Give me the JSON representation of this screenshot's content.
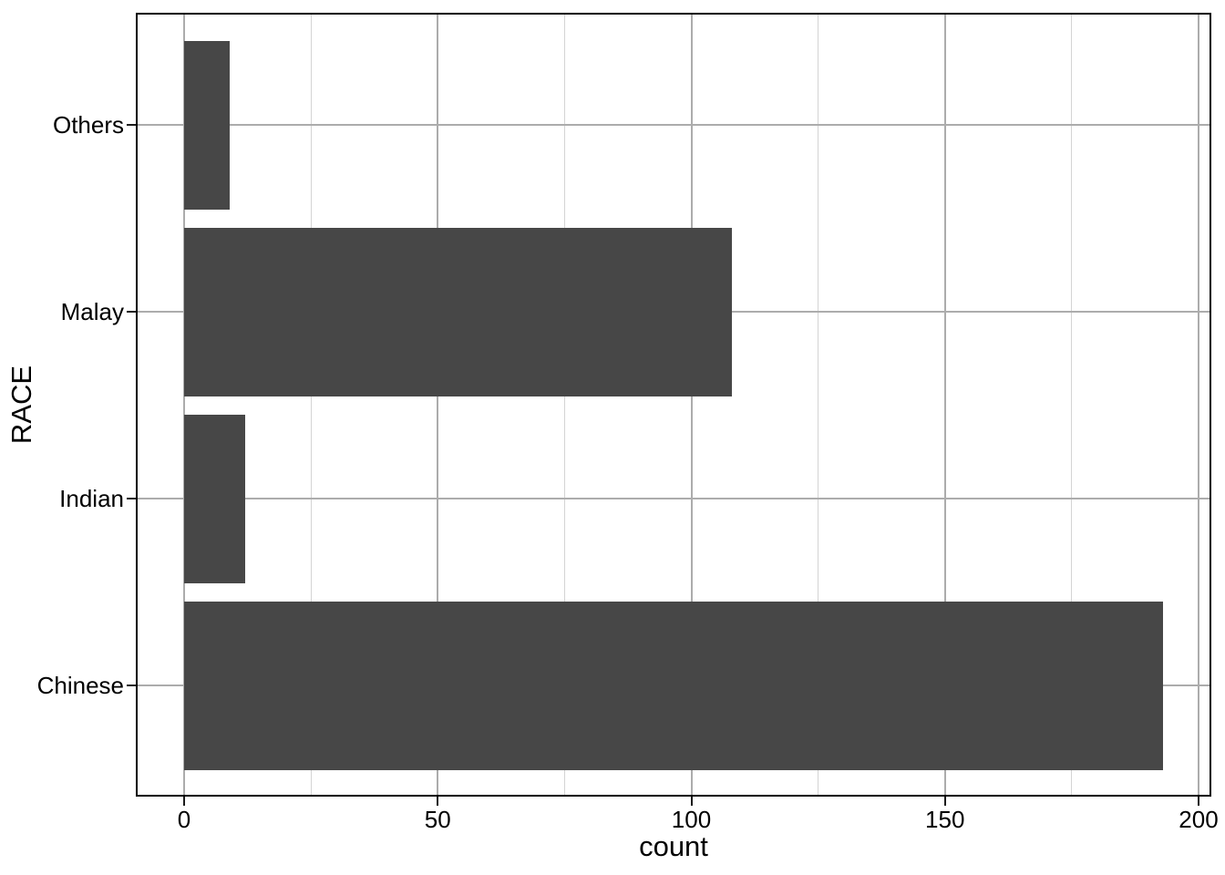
{
  "figure": {
    "background": "#ffffff"
  },
  "chart_data": {
    "type": "bar",
    "orientation": "horizontal",
    "title": "",
    "xlabel": "count",
    "ylabel": "RACE",
    "categories": [
      "Others",
      "Malay",
      "Indian",
      "Chinese"
    ],
    "categories_order": "top-to-bottom",
    "values": [
      9,
      108,
      12,
      193
    ],
    "x_ticks": [
      0,
      50,
      100,
      150,
      200
    ],
    "x_minor_ticks": [
      25,
      75,
      125,
      175
    ],
    "xlim": [
      -9,
      203
    ],
    "grid": true,
    "legend": false,
    "colors": {
      "bar_fill": "#474747",
      "panel_border": "#000000",
      "panel_background": "#ffffff",
      "grid_major": "#ACACAC",
      "grid_minor": "#D4D4D4",
      "tick_mark": "#1a1a1a",
      "text": "#000000"
    }
  }
}
